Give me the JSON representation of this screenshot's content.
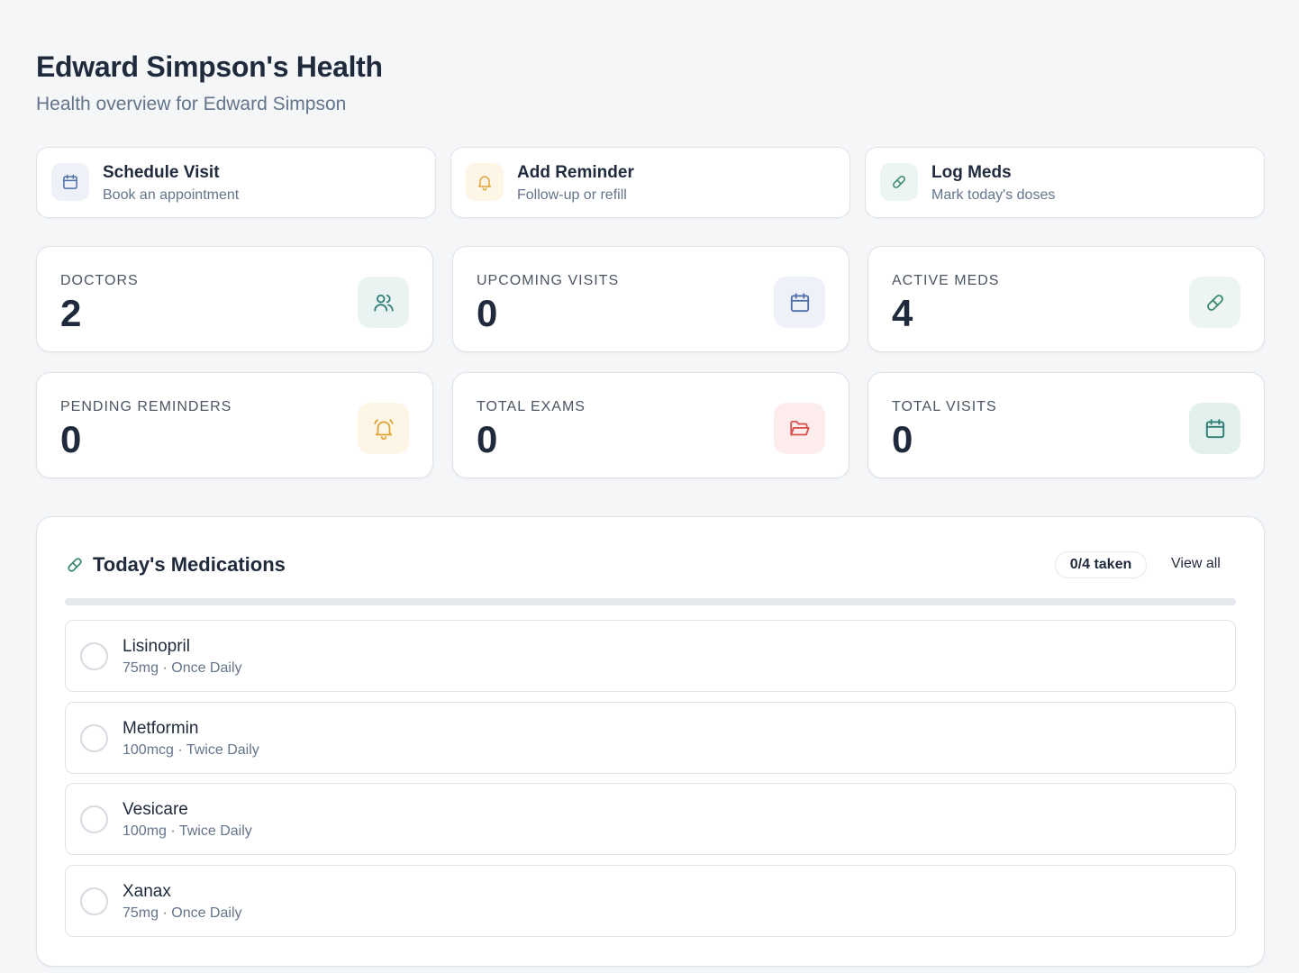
{
  "header": {
    "title": "Edward Simpson's Health",
    "subtitle": "Health overview for Edward Simpson"
  },
  "quick_actions": [
    {
      "title": "Schedule Visit",
      "subtitle": "Book an appointment",
      "icon": "calendar-icon"
    },
    {
      "title": "Add Reminder",
      "subtitle": "Follow-up or refill",
      "icon": "bell-icon"
    },
    {
      "title": "Log Meds",
      "subtitle": "Mark today's doses",
      "icon": "pill-icon"
    }
  ],
  "stats": [
    {
      "label": "Doctors",
      "value": "2",
      "icon": "users-icon"
    },
    {
      "label": "Upcoming Visits",
      "value": "0",
      "icon": "calendar-icon"
    },
    {
      "label": "Active Meds",
      "value": "4",
      "icon": "pill-icon"
    },
    {
      "label": "Pending Reminders",
      "value": "0",
      "icon": "bell-ringing-icon"
    },
    {
      "label": "Total Exams",
      "value": "0",
      "icon": "folder-open-icon"
    },
    {
      "label": "Total Visits",
      "value": "0",
      "icon": "calendar-icon"
    }
  ],
  "medications": {
    "title": "Today's Medications",
    "taken_badge": "0/4 taken",
    "view_all": "View all",
    "progress": 0,
    "items": [
      {
        "name": "Lisinopril",
        "detail": "75mg · Once Daily",
        "taken": false
      },
      {
        "name": "Metformin",
        "detail": "100mcg · Twice Daily",
        "taken": false
      },
      {
        "name": "Vesicare",
        "detail": "100mg · Twice Daily",
        "taken": false
      },
      {
        "name": "Xanax",
        "detail": "75mg · Once Daily",
        "taken": false
      }
    ]
  },
  "colors": {
    "blue": "#4f6fa8",
    "amber": "#e0a53a",
    "green": "#3b8a6e",
    "teal": "#2f7f77",
    "red": "#d9534f"
  }
}
